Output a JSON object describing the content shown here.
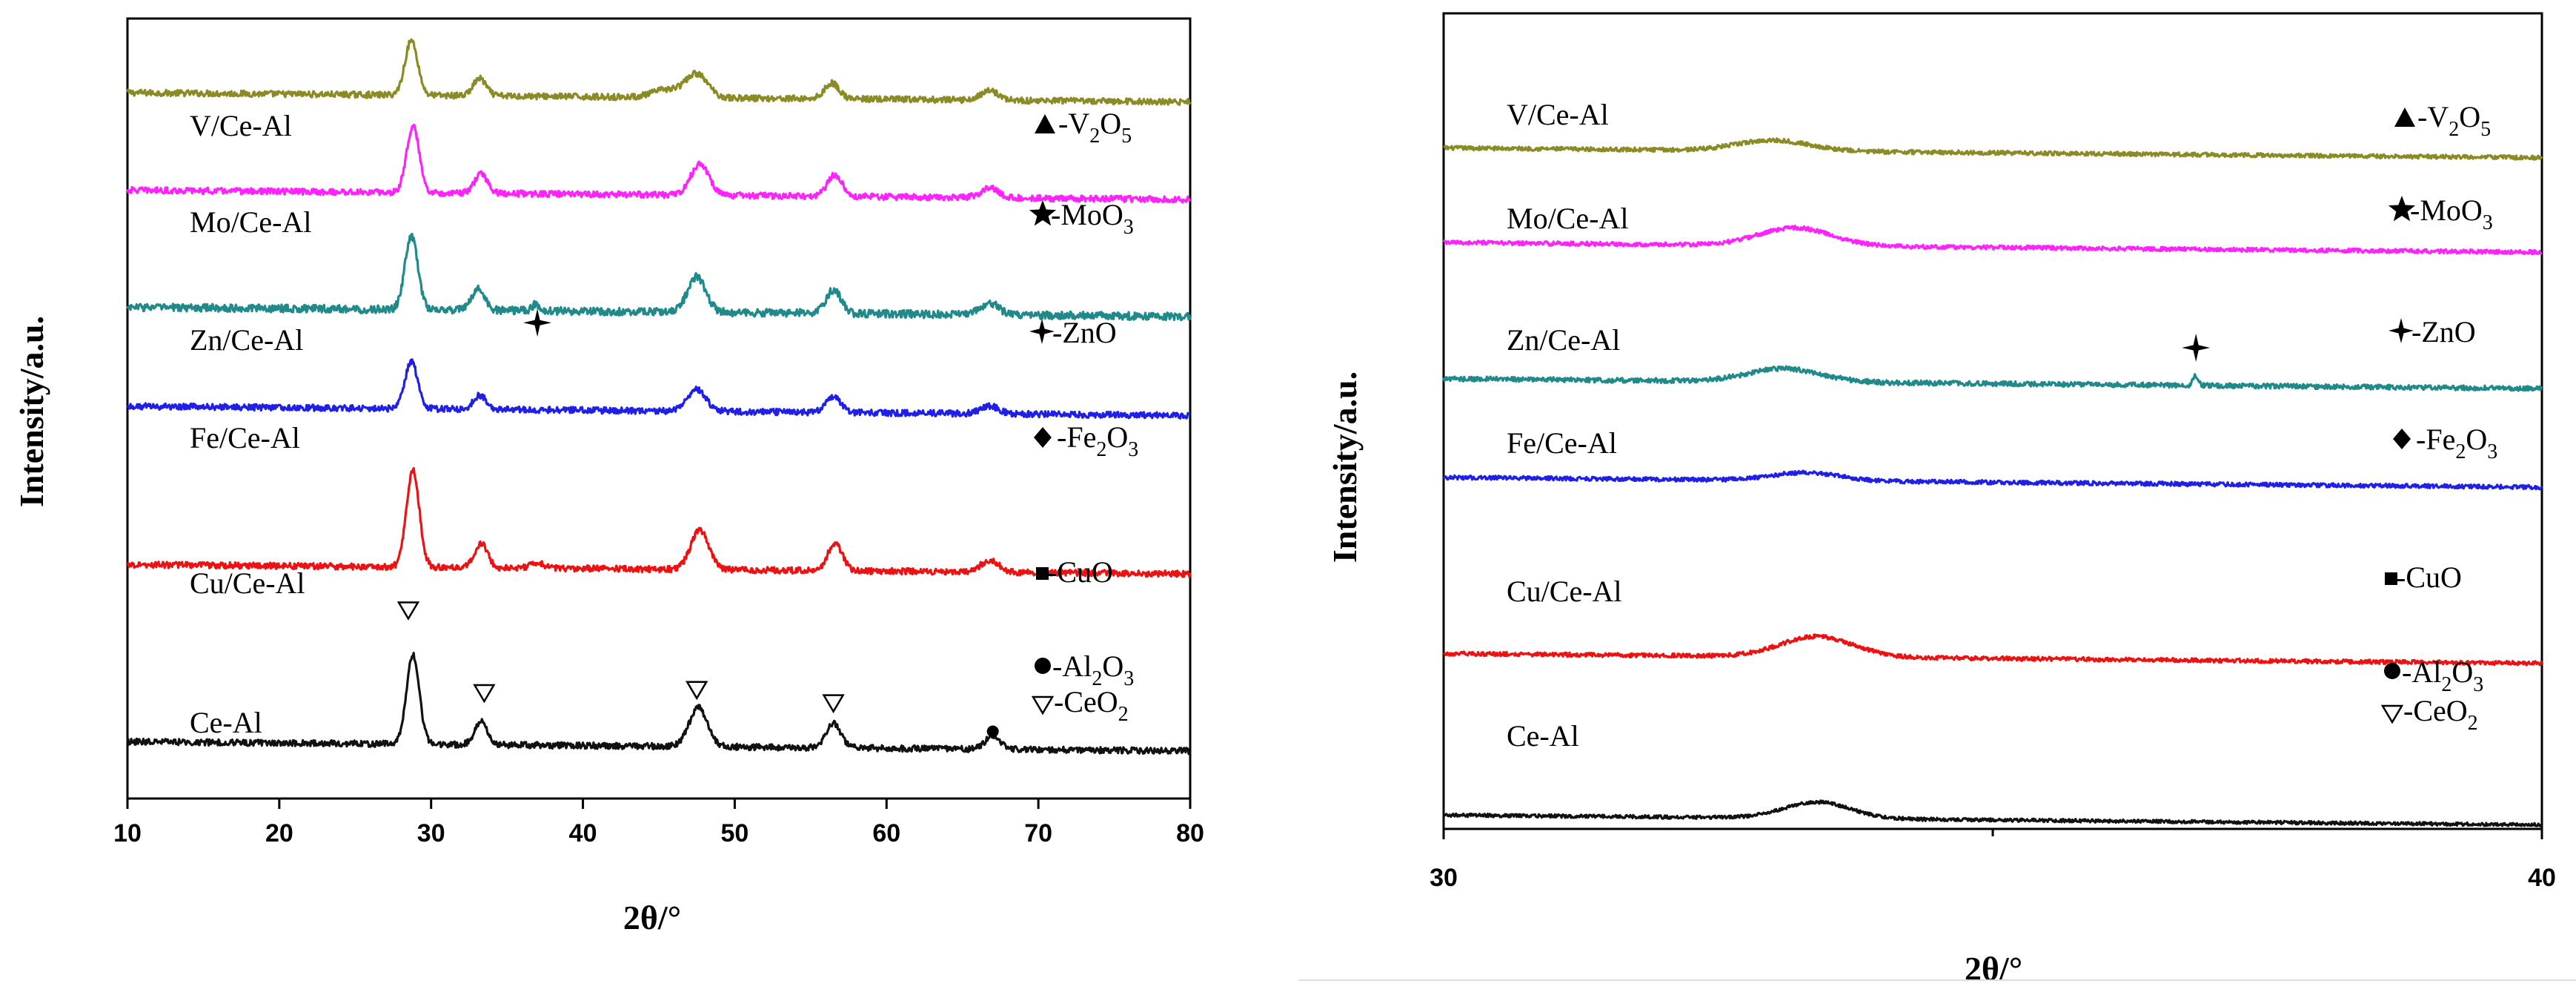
{
  "chart_data": [
    {
      "id": "left",
      "type": "line",
      "xlabel": "2θ/°",
      "ylabel": "Intensity/a.u.",
      "xlim": [
        10,
        80
      ],
      "xticks": [
        10,
        20,
        30,
        40,
        50,
        60,
        70,
        80
      ],
      "series": [
        {
          "name": "V/Ce-Al",
          "color": "#8b8b26",
          "baseline": 0.905,
          "peaks": [
            [
              28.7,
              0.07,
              0.7
            ],
            [
              33.2,
              0.022,
              0.7
            ],
            [
              47.5,
              0.03,
              1.2
            ],
            [
              56.4,
              0.02,
              0.8
            ],
            [
              66.8,
              0.012,
              1.0
            ],
            [
              45.5,
              0.01,
              1.5
            ]
          ],
          "noise": 0.004
        },
        {
          "name": "Mo/Ce-Al",
          "color": "#ff22ff",
          "baseline": 0.78,
          "peaks": [
            [
              28.8,
              0.085,
              0.7
            ],
            [
              33.3,
              0.025,
              0.7
            ],
            [
              47.7,
              0.04,
              1.0
            ],
            [
              56.6,
              0.028,
              0.8
            ],
            [
              66.8,
              0.012,
              1.0
            ]
          ],
          "noise": 0.004
        },
        {
          "name": "Zn/Ce-Al",
          "color": "#208a8a",
          "baseline": 0.63,
          "peaks": [
            [
              28.7,
              0.095,
              0.7
            ],
            [
              33.1,
              0.028,
              0.7
            ],
            [
              36.9,
              0.008,
              0.4
            ],
            [
              47.5,
              0.045,
              1.0
            ],
            [
              56.5,
              0.03,
              0.8
            ],
            [
              66.8,
              0.015,
              1.0
            ]
          ],
          "noise": 0.005
        },
        {
          "name": "Fe/Ce-Al",
          "color": "#1f1fe8",
          "baseline": 0.503,
          "peaks": [
            [
              28.7,
              0.06,
              0.7
            ],
            [
              33.2,
              0.018,
              0.7
            ],
            [
              47.5,
              0.028,
              1.0
            ],
            [
              56.5,
              0.02,
              0.8
            ],
            [
              66.8,
              0.01,
              1.0
            ]
          ],
          "noise": 0.004
        },
        {
          "name": "Cu/Ce-Al",
          "color": "#ee1111",
          "baseline": 0.3,
          "peaks": [
            [
              28.8,
              0.125,
              0.7
            ],
            [
              33.3,
              0.032,
              0.7
            ],
            [
              37.0,
              0.006,
              0.8
            ],
            [
              47.7,
              0.05,
              1.0
            ],
            [
              56.6,
              0.035,
              0.8
            ],
            [
              66.8,
              0.015,
              1.0
            ]
          ],
          "noise": 0.004
        },
        {
          "name": "Ce-Al",
          "color": "#111111",
          "baseline": 0.073,
          "peaks": [
            [
              28.8,
              0.115,
              0.7
            ],
            [
              33.3,
              0.03,
              0.7
            ],
            [
              47.6,
              0.05,
              1.0
            ],
            [
              56.5,
              0.032,
              0.8
            ],
            [
              67.0,
              0.018,
              0.8
            ]
          ],
          "noise": 0.004
        }
      ],
      "annotations": [
        {
          "symbol": "star4",
          "x": 37.0,
          "y": 0.61
        },
        {
          "symbol": "tri_down_open",
          "x": 28.5,
          "y": 0.241
        },
        {
          "symbol": "tri_down_open",
          "x": 33.5,
          "y": 0.135
        },
        {
          "symbol": "tri_down_open",
          "x": 47.5,
          "y": 0.139
        },
        {
          "symbol": "tri_down_open",
          "x": 56.5,
          "y": 0.122
        },
        {
          "symbol": "circle",
          "x": 67.0,
          "y": 0.086
        }
      ]
    },
    {
      "id": "right",
      "type": "line",
      "xlabel": "2θ/°",
      "ylabel": "Intensity/a.u.",
      "xlim": [
        30,
        40
      ],
      "xticks": [
        30,
        40
      ],
      "series": [
        {
          "name": "V/Ce-Al",
          "color": "#8b8b26",
          "baseline": 0.835,
          "peaks": [
            [
              33.0,
              0.013,
              0.55
            ]
          ],
          "noise": 0.0025
        },
        {
          "name": "Mo/Ce-Al",
          "color": "#ff22ff",
          "baseline": 0.719,
          "peaks": [
            [
              33.2,
              0.022,
              0.55
            ]
          ],
          "noise": 0.0025
        },
        {
          "name": "Zn/Ce-Al",
          "color": "#208a8a",
          "baseline": 0.552,
          "peaks": [
            [
              33.1,
              0.016,
              0.55
            ],
            [
              36.85,
              0.012,
              0.04
            ]
          ],
          "noise": 0.003
        },
        {
          "name": "Fe/Ce-Al",
          "color": "#1f1fe8",
          "baseline": 0.431,
          "peaks": [
            [
              33.3,
              0.01,
              0.5
            ]
          ],
          "noise": 0.0025
        },
        {
          "name": "Cu/Ce-Al",
          "color": "#ee1111",
          "baseline": 0.215,
          "peaks": [
            [
              33.4,
              0.025,
              0.55
            ]
          ],
          "noise": 0.0025
        },
        {
          "name": "Ce-Al",
          "color": "#111111",
          "baseline": 0.017,
          "peaks": [
            [
              33.4,
              0.02,
              0.5
            ]
          ],
          "noise": 0.002
        }
      ],
      "annotations": [
        {
          "symbol": "star4",
          "x": 36.85,
          "y": 0.59
        }
      ]
    }
  ],
  "legend": {
    "v2o5": {
      "main": "-V",
      "sub1": "2",
      "mid": "O",
      "sub2": "5"
    },
    "moo3": {
      "main": "-MoO",
      "sub1": "3"
    },
    "zno": {
      "main": "-ZnO"
    },
    "fe2o3": {
      "main": "-Fe",
      "sub1": "2",
      "mid": "O",
      "sub2": "3"
    },
    "cuo": {
      "main": "-CuO"
    },
    "al2o3": {
      "main": "-Al",
      "sub1": "2",
      "mid": "O",
      "sub2": "3"
    },
    "ceo2": {
      "main": "-CeO",
      "sub1": "2"
    }
  }
}
